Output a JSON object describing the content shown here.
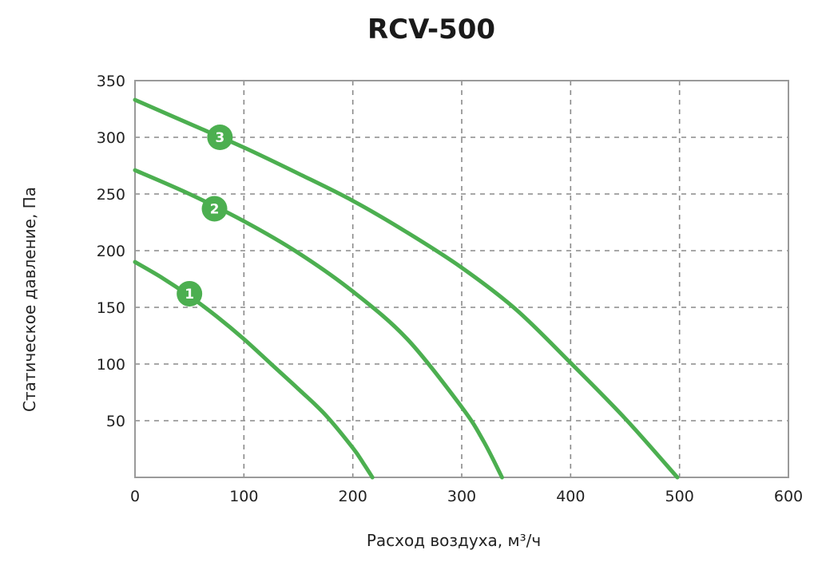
{
  "chart_data": {
    "type": "line",
    "title": "RCV-500",
    "xlabel": "Расход воздуха, м³/ч",
    "ylabel": "Статическое давление, Па",
    "xlim": [
      0,
      600
    ],
    "ylim": [
      0,
      350
    ],
    "x_ticks": [
      "0",
      "100",
      "200",
      "300",
      "400",
      "500",
      "600"
    ],
    "y_ticks": [
      "50",
      "100",
      "150",
      "200",
      "250",
      "300",
      "350"
    ],
    "grid": true,
    "line_color": "#4caf50",
    "series": [
      {
        "name": "1",
        "x": [
          0,
          25,
          50,
          75,
          100,
          125,
          150,
          175,
          200,
          210,
          218
        ],
        "y": [
          190,
          176,
          160,
          142,
          122,
          100,
          78,
          55,
          26,
          12,
          0
        ]
      },
      {
        "name": "2",
        "x": [
          0,
          50,
          100,
          150,
          200,
          250,
          300,
          320,
          337
        ],
        "y": [
          271,
          250,
          226,
          198,
          164,
          122,
          62,
          32,
          0
        ]
      },
      {
        "name": "3",
        "x": [
          0,
          50,
          100,
          150,
          200,
          250,
          300,
          350,
          400,
          450,
          498
        ],
        "y": [
          333,
          312,
          291,
          268,
          244,
          216,
          185,
          148,
          101,
          52,
          0
        ]
      }
    ],
    "markers": [
      {
        "label": "1",
        "x": 50,
        "y": 162
      },
      {
        "label": "2",
        "x": 73,
        "y": 237
      },
      {
        "label": "3",
        "x": 78,
        "y": 300
      }
    ]
  }
}
